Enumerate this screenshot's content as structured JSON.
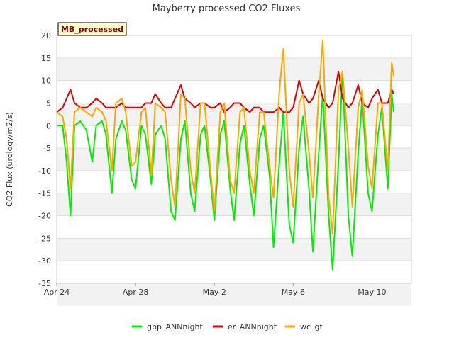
{
  "chart_data": {
    "type": "line",
    "title": "Mayberry processed CO2 Fluxes",
    "ylabel": "CO2 Flux (urology/m2/s)",
    "xlabel": "",
    "badge": "MB_processed",
    "x_ticks": [
      "Apr 24",
      "Apr 28",
      "May 2",
      "May 6",
      "May 10"
    ],
    "x_tick_days": [
      0,
      4,
      8,
      12,
      16
    ],
    "xlim_days": [
      0,
      18
    ],
    "ylim": [
      -35,
      20
    ],
    "y_ticks": [
      20,
      15,
      10,
      5,
      0,
      -5,
      -10,
      -15,
      -20,
      -25,
      -30,
      -35
    ],
    "grid": true,
    "legend_position": "bottom",
    "x": [
      0.0,
      0.3,
      0.5,
      0.7,
      0.9,
      1.2,
      1.5,
      1.8,
      2.0,
      2.3,
      2.5,
      2.8,
      3.0,
      3.3,
      3.5,
      3.8,
      4.0,
      4.3,
      4.5,
      4.8,
      5.0,
      5.3,
      5.5,
      5.8,
      6.0,
      6.3,
      6.5,
      6.8,
      7.0,
      7.3,
      7.5,
      7.8,
      8.0,
      8.3,
      8.5,
      8.8,
      9.0,
      9.3,
      9.5,
      9.8,
      10.0,
      10.3,
      10.5,
      10.8,
      11.0,
      11.3,
      11.5,
      11.8,
      12.0,
      12.3,
      12.5,
      12.8,
      13.0,
      13.3,
      13.5,
      13.8,
      14.0,
      14.3,
      14.5,
      14.8,
      15.0,
      15.3,
      15.5,
      15.8,
      16.0,
      16.3,
      16.5,
      16.8,
      17.0,
      17.1
    ],
    "series": [
      {
        "name": "gpp_ANNnight",
        "color": "#00ee00",
        "values": [
          0,
          0,
          -8,
          -20,
          0,
          1,
          -1,
          -8,
          0,
          1,
          -2,
          -15,
          -3,
          1,
          -1,
          -12,
          -14,
          0,
          -2,
          -13,
          -2,
          0,
          -3,
          -19,
          -21,
          -3,
          1,
          -15,
          -19,
          -2,
          0,
          -12,
          -21,
          -2,
          1,
          -14,
          -21,
          -4,
          0,
          -13,
          -20,
          -3,
          0,
          -11,
          -27,
          -8,
          3,
          -22,
          -26,
          -5,
          2,
          -14,
          -28,
          -6,
          7,
          -20,
          -32,
          -8,
          12,
          -20,
          -29,
          -6,
          6,
          -15,
          -19,
          -2,
          4,
          -14,
          7,
          3
        ]
      },
      {
        "name": "er_ANNnight",
        "color": "#dd0000",
        "values": [
          3,
          4,
          6,
          8,
          5,
          4,
          4,
          5,
          6,
          5,
          4,
          4,
          4,
          5,
          4,
          4,
          4,
          4,
          5,
          5,
          7,
          5,
          4,
          4,
          6,
          9,
          6,
          5,
          4,
          5,
          5,
          4,
          4,
          5,
          3,
          4,
          5,
          5,
          4,
          3,
          4,
          4,
          3,
          3,
          3,
          4,
          3,
          3,
          4,
          10,
          7,
          5,
          6,
          10,
          6,
          4,
          5,
          12,
          6,
          4,
          5,
          9,
          5,
          4,
          6,
          8,
          5,
          5,
          8,
          7
        ]
      },
      {
        "name": "wc_gf",
        "color": "#ffa500",
        "values": [
          3,
          2,
          -3,
          -14,
          3,
          4,
          3,
          2,
          4,
          3,
          1,
          -10,
          5,
          6,
          3,
          -9,
          -8,
          3,
          4,
          -11,
          5,
          4,
          3,
          -12,
          -18,
          7,
          6,
          -10,
          -15,
          5,
          5,
          -10,
          -19,
          3,
          5,
          -12,
          -15,
          3,
          4,
          -10,
          -15,
          3,
          3,
          -9,
          -16,
          8,
          17,
          -10,
          -18,
          5,
          7,
          -6,
          -16,
          7,
          19,
          -16,
          -24,
          8,
          12,
          -5,
          -18,
          4,
          8,
          -9,
          -14,
          5,
          5,
          -10,
          14,
          11
        ]
      }
    ]
  }
}
